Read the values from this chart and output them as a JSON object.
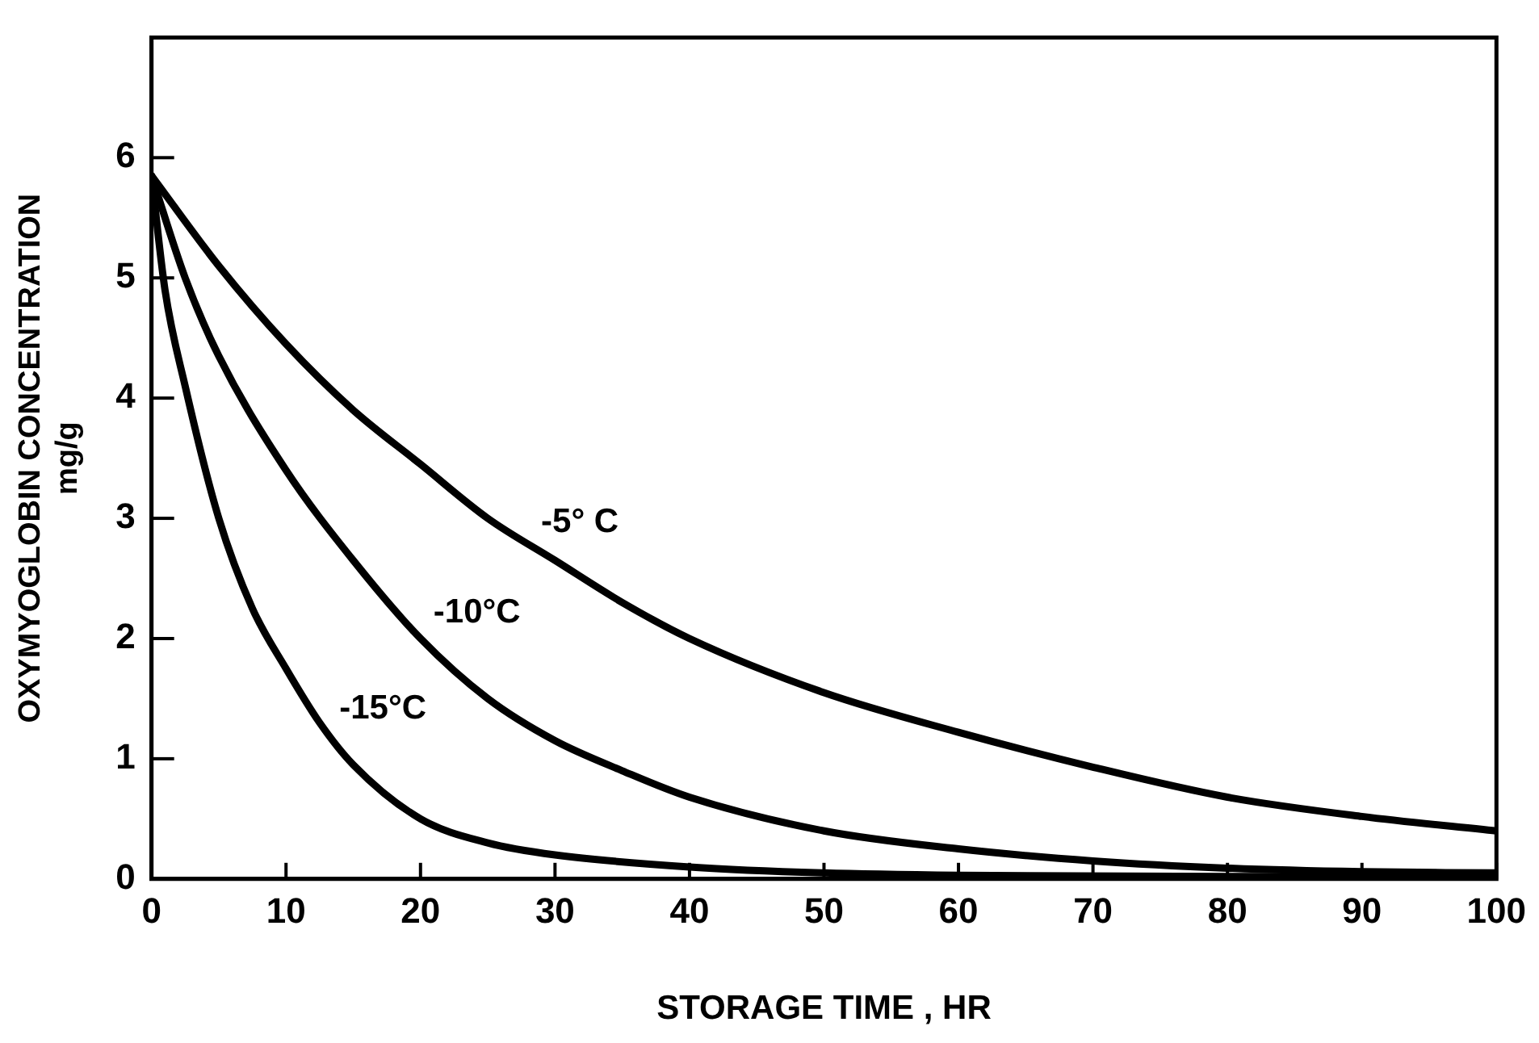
{
  "chart_data": {
    "type": "line",
    "xlabel": "STORAGE TIME , HR",
    "ylabel": "OXYMYOGLOBIN CONCENTRATION\nmg/g",
    "xlim": [
      0,
      100
    ],
    "ylim": [
      0,
      7
    ],
    "xticks": [
      0,
      10,
      20,
      30,
      40,
      50,
      60,
      70,
      80,
      90,
      100
    ],
    "yticks": [
      0,
      1,
      2,
      3,
      4,
      5,
      6
    ],
    "grid": false,
    "legend": false,
    "marker": "none",
    "line_style": "solid",
    "series": [
      {
        "color": "#000000",
        "x": [
          0,
          5,
          10,
          15,
          20,
          25,
          30,
          35,
          40,
          50,
          60,
          70,
          80,
          90,
          100
        ],
        "values": [
          5.85,
          5.1,
          4.45,
          3.9,
          3.45,
          3.0,
          2.65,
          2.3,
          2.0,
          1.55,
          1.22,
          0.93,
          0.68,
          0.52,
          0.4
        ]
      },
      {
        "color": "#000000",
        "x": [
          0,
          2.5,
          5,
          10,
          15,
          20,
          25,
          30,
          35,
          40,
          50,
          60,
          70,
          80,
          90,
          100
        ],
        "values": [
          5.85,
          5.0,
          4.35,
          3.4,
          2.65,
          2.0,
          1.5,
          1.15,
          0.9,
          0.68,
          0.4,
          0.25,
          0.15,
          0.09,
          0.06,
          0.05
        ]
      },
      {
        "color": "#000000",
        "x": [
          0,
          1,
          2.5,
          5,
          7.5,
          10,
          12.5,
          15,
          20,
          25,
          30,
          40,
          50,
          60,
          80,
          100
        ],
        "values": [
          5.85,
          4.9,
          4.1,
          3.0,
          2.25,
          1.75,
          1.3,
          0.95,
          0.5,
          0.3,
          0.2,
          0.1,
          0.05,
          0.03,
          0.02,
          0.02
        ]
      }
    ],
    "annotations": [
      {
        "text": "-5° C",
        "x": 28,
        "y": 2.75
      },
      {
        "text": "-10°C",
        "x": 20,
        "y": 2.0
      },
      {
        "text": "-15°C",
        "x": 13,
        "y": 1.2
      }
    ]
  }
}
